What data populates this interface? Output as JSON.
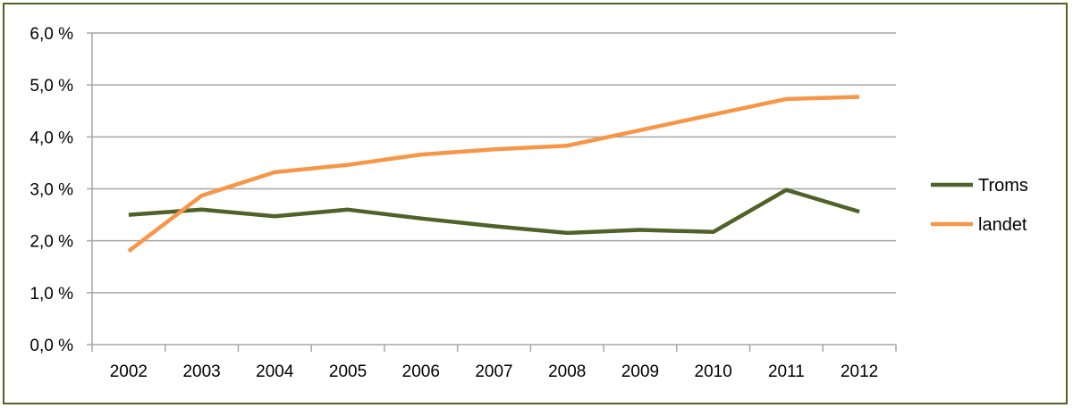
{
  "chart_data": {
    "type": "line",
    "title": "",
    "xlabel": "",
    "ylabel": "",
    "categories": [
      "2002",
      "2003",
      "2004",
      "2005",
      "2006",
      "2007",
      "2008",
      "2009",
      "2010",
      "2011",
      "2012"
    ],
    "series": [
      {
        "name": "Troms",
        "color": "#4f6228",
        "values": [
          2.5,
          2.6,
          2.47,
          2.6,
          2.43,
          2.28,
          2.15,
          2.21,
          2.17,
          2.98,
          2.56
        ]
      },
      {
        "name": "landet",
        "color": "#f79646",
        "values": [
          1.8,
          2.87,
          3.32,
          3.46,
          3.66,
          3.76,
          3.83,
          4.13,
          4.43,
          4.73,
          4.77
        ]
      }
    ],
    "ylim": [
      0,
      6
    ],
    "yticks": [
      0,
      1,
      2,
      3,
      4,
      5,
      6
    ],
    "ytick_labels": [
      "0,0 %",
      "1,0 %",
      "2,0 %",
      "3,0 %",
      "4,0 %",
      "5,0 %",
      "6,0 %"
    ],
    "grid": true,
    "legend_position": "right",
    "gridline_color": "#a6a6a6",
    "frame_color": "#4f6228"
  }
}
